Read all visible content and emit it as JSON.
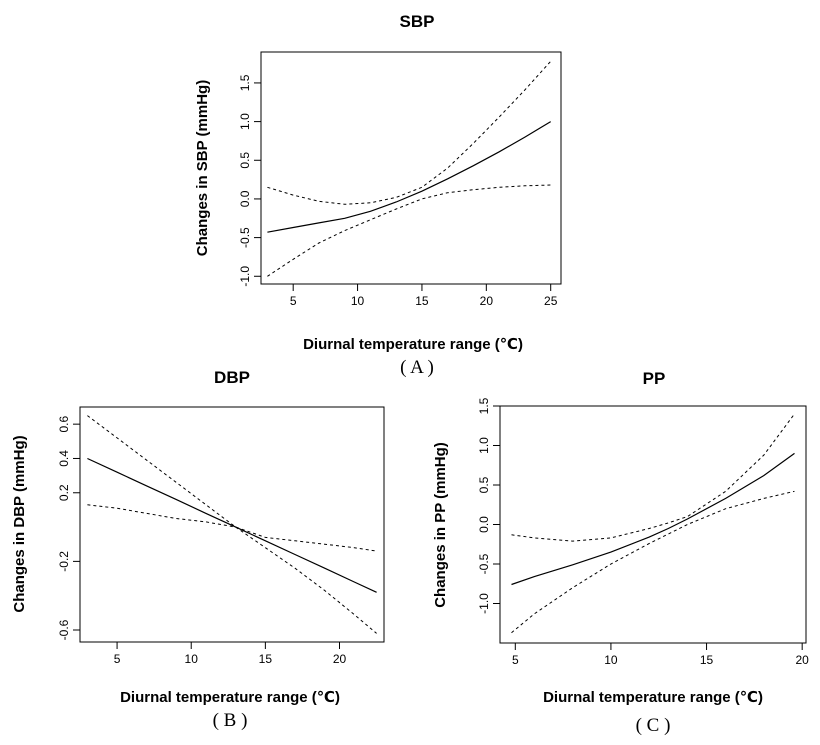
{
  "chart_data": [
    {
      "id": "A",
      "type": "line",
      "title": "SBP",
      "xlabel": "Diurnal temperature range (℃)",
      "ylabel": "Changes in SBP (mmHg)",
      "panel_label": "( A )",
      "xlim": [
        2.5,
        25.8
      ],
      "ylim": [
        -1.1,
        1.9
      ],
      "xticks": [
        5,
        10,
        15,
        20,
        25
      ],
      "yticks": [
        -1.0,
        -0.5,
        0.0,
        0.5,
        1.0,
        1.5
      ],
      "xtick_labels": [
        "5",
        "10",
        "15",
        "20",
        "25"
      ],
      "ytick_labels": [
        "-1.0",
        "-0.5",
        "0.0",
        "0.5",
        "1.0",
        "1.5"
      ],
      "x": [
        3,
        5,
        7,
        9,
        11,
        13,
        15,
        17,
        19,
        21,
        23,
        25
      ],
      "series": [
        {
          "role": "estimate",
          "values": [
            -0.43,
            -0.37,
            -0.31,
            -0.25,
            -0.16,
            -0.04,
            0.1,
            0.26,
            0.43,
            0.61,
            0.8,
            1.0
          ]
        },
        {
          "role": "upper",
          "values": [
            0.15,
            0.05,
            -0.03,
            -0.07,
            -0.05,
            0.02,
            0.15,
            0.4,
            0.72,
            1.06,
            1.41,
            1.78
          ]
        },
        {
          "role": "lower",
          "values": [
            -1.0,
            -0.78,
            -0.57,
            -0.41,
            -0.27,
            -0.13,
            0.0,
            0.08,
            0.12,
            0.15,
            0.17,
            0.18
          ]
        }
      ]
    },
    {
      "id": "B",
      "type": "line",
      "title": "DBP",
      "xlabel": "Diurnal temperature range (℃)",
      "ylabel": "Changes in DBP (mmHg)",
      "panel_label": "( B )",
      "xlim": [
        2.5,
        23.0
      ],
      "ylim": [
        -0.67,
        0.7
      ],
      "xticks": [
        5,
        10,
        15,
        20
      ],
      "yticks": [
        -0.6,
        -0.2,
        0.2,
        0.4,
        0.6
      ],
      "xtick_labels": [
        "5",
        "10",
        "15",
        "20"
      ],
      "ytick_labels": [
        "-0.6",
        "-0.2",
        "0.2",
        "0.4",
        "0.6"
      ],
      "x": [
        3,
        5,
        7,
        9,
        11,
        13,
        15,
        17,
        19,
        21,
        22.5
      ],
      "series": [
        {
          "role": "estimate",
          "values": [
            0.4,
            0.32,
            0.24,
            0.16,
            0.08,
            0.0,
            -0.08,
            -0.16,
            -0.24,
            -0.32,
            -0.38
          ]
        },
        {
          "role": "upper",
          "values": [
            0.65,
            0.52,
            0.39,
            0.26,
            0.13,
            0.0,
            -0.06,
            -0.08,
            -0.1,
            -0.12,
            -0.14
          ]
        },
        {
          "role": "lower",
          "values": [
            0.13,
            0.11,
            0.08,
            0.05,
            0.03,
            0.0,
            -0.12,
            -0.24,
            -0.37,
            -0.51,
            -0.62
          ]
        }
      ]
    },
    {
      "id": "C",
      "type": "line",
      "title": "PP",
      "xlabel": "Diurnal temperature range (℃)",
      "ylabel": "Changes in PP (mmHg)",
      "panel_label": "( C )",
      "xlim": [
        4.2,
        20.2
      ],
      "ylim": [
        -1.5,
        1.5
      ],
      "xticks": [
        5,
        10,
        15,
        20
      ],
      "yticks": [
        -1.0,
        -0.5,
        0.0,
        0.5,
        1.0,
        1.5
      ],
      "xtick_labels": [
        "5",
        "10",
        "15",
        "20"
      ],
      "ytick_labels": [
        "-1.0",
        "-0.5",
        "0.0",
        "0.5",
        "1.0",
        "1.5"
      ],
      "x": [
        4.8,
        6,
        8,
        10,
        12,
        13,
        14,
        16,
        18,
        19.6
      ],
      "series": [
        {
          "role": "estimate",
          "values": [
            -0.76,
            -0.66,
            -0.51,
            -0.35,
            -0.16,
            -0.05,
            0.07,
            0.33,
            0.62,
            0.9
          ]
        },
        {
          "role": "upper",
          "values": [
            -0.13,
            -0.17,
            -0.21,
            -0.17,
            -0.05,
            0.02,
            0.1,
            0.42,
            0.88,
            1.4
          ]
        },
        {
          "role": "lower",
          "values": [
            -1.37,
            -1.13,
            -0.8,
            -0.5,
            -0.24,
            -0.12,
            0.0,
            0.2,
            0.33,
            0.42
          ]
        }
      ]
    }
  ]
}
